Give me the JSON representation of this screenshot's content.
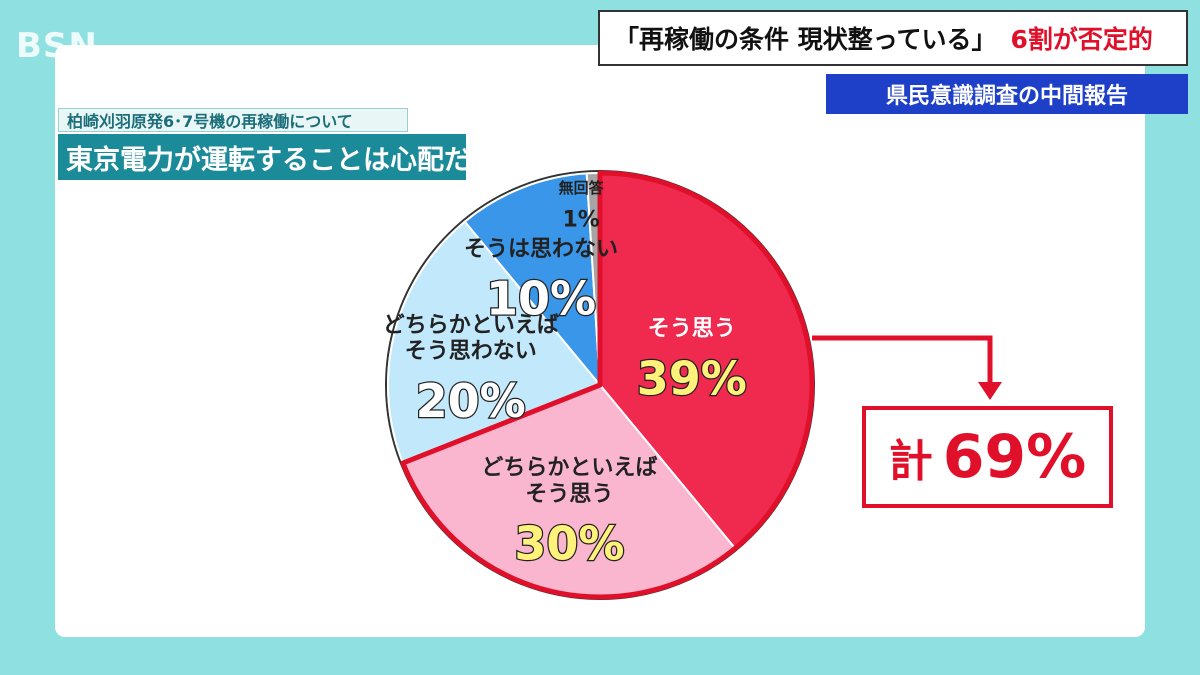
{
  "broadcaster_logo": "BSN",
  "headline": {
    "main": "「再稼働の条件 現状整っている」",
    "accent": "6割が否定的"
  },
  "subheadline": "県民意識調査の中間報告",
  "question_label": "柏崎刈羽原発6･7号機の再稼働について",
  "question_title": "東京電力が運転することは心配だ",
  "chart_data": {
    "type": "pie",
    "title": "東京電力が運転することは心配だ",
    "slices": [
      {
        "label": "そう思う",
        "value": 39,
        "display": "39%",
        "color": "#f0294f",
        "value_color": "#fff27a",
        "label_color": "#ffffff"
      },
      {
        "label": "どちらかといえば\nそう思う",
        "value": 30,
        "display": "30%",
        "color": "#fbb6cf",
        "value_color": "#fff27a",
        "label_color": "#222222"
      },
      {
        "label": "どちらかといえば\nそう思わない",
        "value": 20,
        "display": "20%",
        "color": "#c2e8fb",
        "value_color": "#ffffff",
        "label_color": "#222222"
      },
      {
        "label": "そうは思わない",
        "value": 10,
        "display": "10%",
        "color": "#3a96e8",
        "value_color": "#ffffff",
        "label_color": "#222222"
      },
      {
        "label": "無回答",
        "value": 1,
        "display": "1%",
        "color": "#a5a5a5",
        "value_color": "#222222",
        "label_color": "#222222"
      }
    ],
    "total": {
      "label": "計",
      "value": "69%"
    },
    "highlight_color": "#e0102a"
  }
}
